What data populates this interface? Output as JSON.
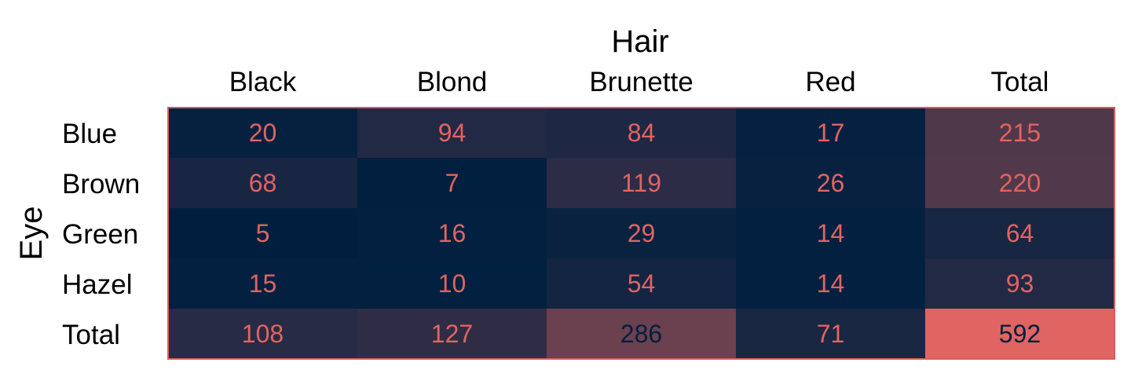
{
  "chart_data": {
    "type": "heatmap",
    "xlabel": "Hair",
    "ylabel": "Eye",
    "x_categories": [
      "Black",
      "Blond",
      "Brunette",
      "Red",
      "Total"
    ],
    "y_categories": [
      "Blue",
      "Brown",
      "Green",
      "Hazel",
      "Total"
    ],
    "values": [
      [
        20,
        94,
        84,
        17,
        215
      ],
      [
        68,
        7,
        119,
        26,
        220
      ],
      [
        5,
        16,
        29,
        14,
        64
      ],
      [
        15,
        10,
        54,
        14,
        93
      ],
      [
        108,
        127,
        286,
        71,
        592
      ]
    ],
    "color_low": "#001f3f",
    "color_high": "#e06461",
    "text_color_default": "#e06461",
    "text_color_on_high": "#001f3f",
    "border_color": "#d65f5f"
  }
}
